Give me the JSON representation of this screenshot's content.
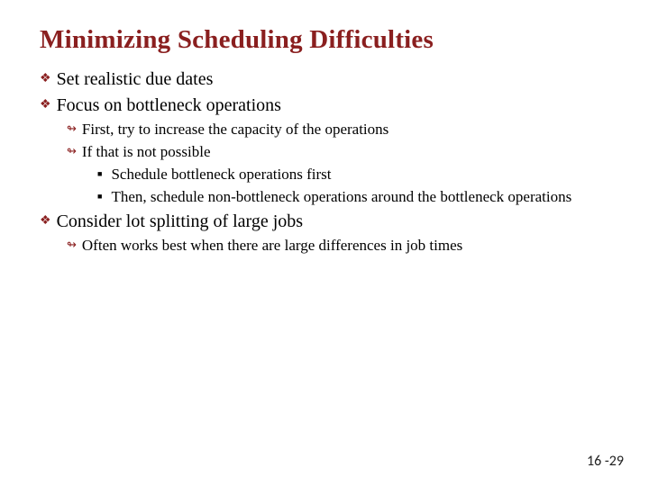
{
  "title": {
    "text": "Minimizing Scheduling Difficulties",
    "color": "#8a1f1f",
    "fontsize": 29
  },
  "bullets": {
    "diamond_color": "#8a1f1f",
    "arrow_color": "#8a1f1f",
    "square_color": "#000000",
    "lvl1_fontsize": 20,
    "lvl2_fontsize": 17,
    "lvl3_fontsize": 17
  },
  "content": [
    {
      "text": "Set realistic due dates",
      "children": []
    },
    {
      "text": "Focus on bottleneck operations",
      "children": [
        {
          "text": "First, try to increase the capacity of the operations",
          "children": []
        },
        {
          "text": "If that is not possible",
          "children": [
            {
              "text": "Schedule bottleneck operations first"
            },
            {
              "text": "Then, schedule non-bottleneck operations around the bottleneck operations"
            }
          ]
        }
      ]
    },
    {
      "text": "Consider lot splitting of large jobs",
      "children": [
        {
          "text": "Often works best when there are large differences in job times",
          "children": []
        }
      ]
    }
  ],
  "page_number": "16 -29",
  "background_color": "#ffffff"
}
